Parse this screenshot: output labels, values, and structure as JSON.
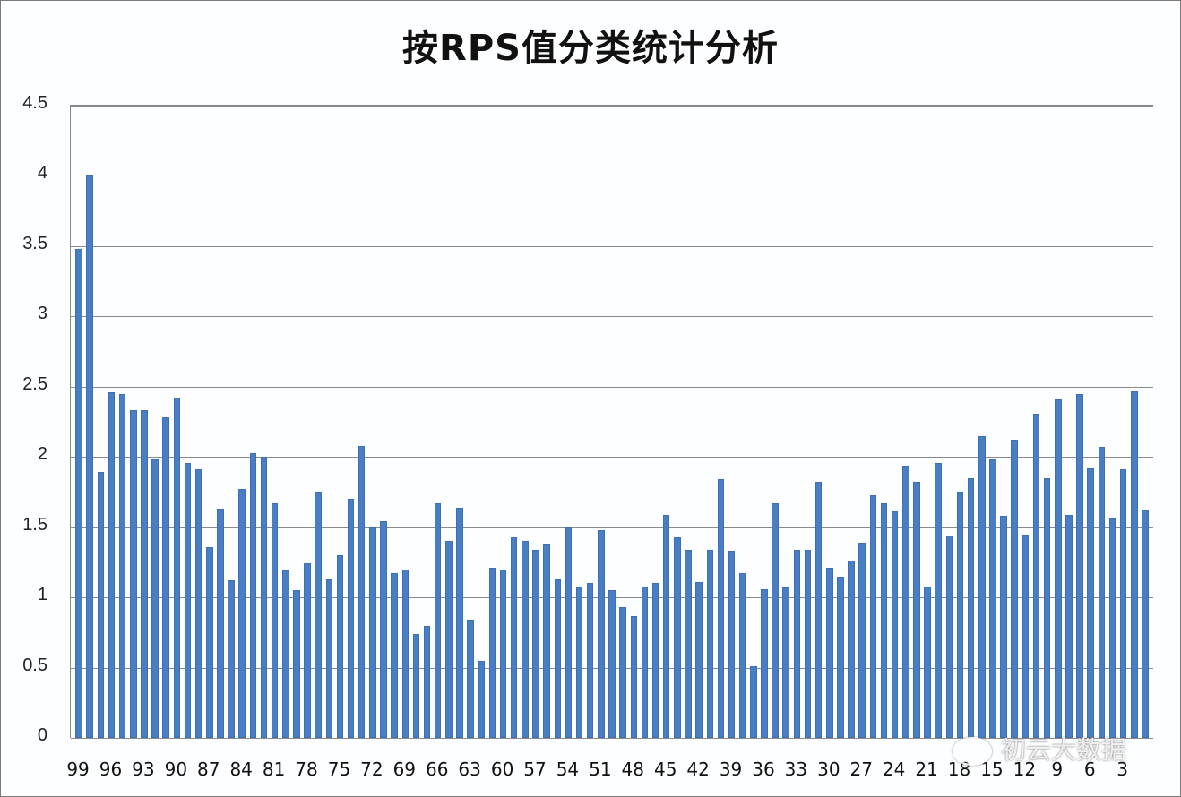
{
  "chart_data": {
    "type": "bar",
    "title": "按RPS值分类统计分析",
    "xlabel": "",
    "ylabel": "",
    "ylim": [
      0,
      4.5
    ],
    "yticks": [
      "0",
      "0.5",
      "1",
      "1.5",
      "2",
      "2.5",
      "3",
      "3.5",
      "4",
      "4.5"
    ],
    "grid": true,
    "legend": null,
    "xtick_labels_shown": [
      "99",
      "96",
      "93",
      "90",
      "87",
      "84",
      "81",
      "78",
      "75",
      "72",
      "69",
      "66",
      "63",
      "60",
      "57",
      "54",
      "51",
      "48",
      "45",
      "42",
      "39",
      "36",
      "33",
      "30",
      "27",
      "24",
      "21",
      "18",
      "15",
      "12",
      "9",
      "6",
      "3"
    ],
    "categories": [
      99,
      98,
      97,
      96,
      95,
      94,
      93,
      92,
      91,
      90,
      89,
      88,
      87,
      86,
      85,
      84,
      83,
      82,
      81,
      80,
      79,
      78,
      77,
      76,
      75,
      74,
      73,
      72,
      71,
      70,
      69,
      68,
      67,
      66,
      65,
      64,
      63,
      62,
      61,
      60,
      59,
      58,
      57,
      56,
      55,
      54,
      53,
      52,
      51,
      50,
      49,
      48,
      47,
      46,
      45,
      44,
      43,
      42,
      41,
      40,
      39,
      38,
      37,
      36,
      35,
      34,
      33,
      32,
      31,
      30,
      29,
      28,
      27,
      26,
      25,
      24,
      23,
      22,
      21,
      20,
      19,
      18,
      17,
      16,
      15,
      14,
      13,
      12,
      11,
      10,
      9,
      8,
      7,
      6,
      5,
      4,
      3,
      2,
      1
    ],
    "values": [
      3.48,
      4.01,
      1.89,
      2.46,
      2.45,
      2.33,
      2.33,
      1.98,
      2.28,
      2.42,
      1.96,
      1.91,
      1.36,
      1.63,
      1.12,
      1.77,
      2.03,
      2.0,
      1.67,
      1.19,
      1.05,
      1.24,
      1.75,
      1.13,
      1.3,
      1.7,
      2.08,
      1.5,
      1.54,
      1.17,
      1.2,
      0.74,
      0.8,
      1.67,
      1.4,
      1.64,
      0.84,
      0.55,
      1.21,
      1.2,
      1.43,
      1.4,
      1.34,
      1.38,
      1.13,
      1.5,
      1.08,
      1.1,
      1.48,
      1.05,
      0.93,
      0.87,
      1.08,
      1.1,
      1.59,
      1.43,
      1.34,
      1.11,
      1.34,
      1.84,
      1.33,
      1.17,
      0.51,
      1.06,
      1.67,
      1.07,
      1.34,
      1.34,
      1.82,
      1.21,
      1.15,
      1.26,
      1.39,
      1.73,
      1.67,
      1.61,
      1.94,
      1.82,
      1.08,
      1.96,
      1.44,
      1.75,
      1.85,
      2.15,
      1.98,
      1.58,
      2.12,
      1.45,
      2.31,
      1.85,
      2.41,
      1.59,
      2.45,
      1.92,
      2.07,
      1.56,
      1.91,
      2.47,
      1.62
    ],
    "bar_color": "#4a7ec4"
  },
  "watermark": {
    "text": "初云大数据",
    "icon": "wechat-icon"
  }
}
